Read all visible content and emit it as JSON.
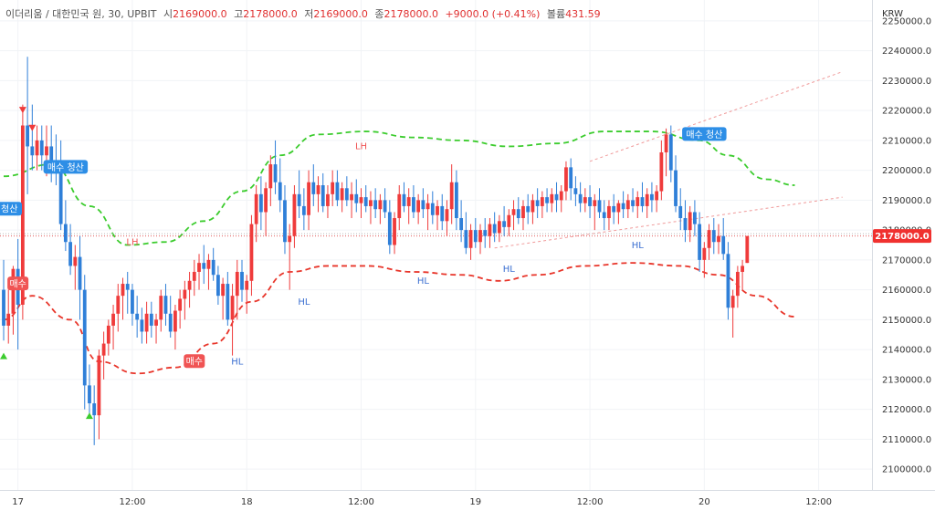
{
  "header": {
    "symbol": "이더리움 / 대한민국 원, 30, UPBIT",
    "open_label": "시",
    "open": "2169000.0",
    "high_label": "고",
    "high": "2178000.0",
    "low_label": "저",
    "low": "2169000.0",
    "close_label": "종",
    "close": "2178000.0",
    "change": "+9000.0 (+0.41%)",
    "volume_label": "볼륨",
    "volume": "431.59"
  },
  "axis": {
    "currency": "KRW",
    "current_price_label": "2178000.0"
  },
  "colors": {
    "up": "#ef3b3b",
    "down": "#2f7fd8",
    "upper_band": "#3ccc2e",
    "lower_band": "#e8352a",
    "trend_line": "#f09a9a",
    "buy_label": "#f05454",
    "close_label": "#2d8ee6",
    "hl_text": "#3b6fd1",
    "lh_text": "#f05454",
    "price_tag": "#f0312f"
  },
  "chart_data": {
    "type": "candlestick",
    "title": "",
    "ylabel": "KRW",
    "y_range": [
      2093000,
      2257000
    ],
    "y_ticks": [
      2100000,
      2110000,
      2120000,
      2130000,
      2140000,
      2150000,
      2160000,
      2170000,
      2180000,
      2190000,
      2200000,
      2210000,
      2220000,
      2230000,
      2240000,
      2250000
    ],
    "y_tick_labels": [
      "2100000.0",
      "2110000.0",
      "2120000.0",
      "2130000.0",
      "2140000.0",
      "2150000.0",
      "2160000.0",
      "2170000.0",
      "2180000.0",
      "2190000.0",
      "2200000.0",
      "2210000.0",
      "2220000.0",
      "2230000.0",
      "2240000.0",
      "2250000.0"
    ],
    "x_ticks": [
      {
        "bar": 3,
        "label": "17"
      },
      {
        "bar": 27,
        "label": "12:00"
      },
      {
        "bar": 51,
        "label": "18"
      },
      {
        "bar": 75,
        "label": "12:00"
      },
      {
        "bar": 99,
        "label": "19"
      },
      {
        "bar": 123,
        "label": "12:00"
      },
      {
        "bar": 147,
        "label": "20"
      },
      {
        "bar": 171,
        "label": "12:00"
      }
    ],
    "grid": true,
    "candles": [
      [
        2160000,
        2170000,
        2143000,
        2148000
      ],
      [
        2148000,
        2160000,
        2142000,
        2152000
      ],
      [
        2152000,
        2168000,
        2145000,
        2167000
      ],
      [
        2167000,
        2177000,
        2140000,
        2155000
      ],
      [
        2155000,
        2222000,
        2150000,
        2215000
      ],
      [
        2215000,
        2238000,
        2192000,
        2208000
      ],
      [
        2208000,
        2222000,
        2200000,
        2205000
      ],
      [
        2205000,
        2215000,
        2200000,
        2210000
      ],
      [
        2210000,
        2215000,
        2200000,
        2205000
      ],
      [
        2205000,
        2215000,
        2198000,
        2208000
      ],
      [
        2208000,
        2215000,
        2196000,
        2202000
      ],
      [
        2202000,
        2212000,
        2195000,
        2200000
      ],
      [
        2200000,
        2210000,
        2180000,
        2182000
      ],
      [
        2182000,
        2190000,
        2173000,
        2176000
      ],
      [
        2176000,
        2182000,
        2165000,
        2168000
      ],
      [
        2168000,
        2175000,
        2160000,
        2171000
      ],
      [
        2171000,
        2178000,
        2150000,
        2160000
      ],
      [
        2160000,
        2165000,
        2120000,
        2128000
      ],
      [
        2128000,
        2135000,
        2118000,
        2122000
      ],
      [
        2122000,
        2128000,
        2108000,
        2118000
      ],
      [
        2118000,
        2140000,
        2110000,
        2138000
      ],
      [
        2138000,
        2146000,
        2130000,
        2142000
      ],
      [
        2142000,
        2150000,
        2138000,
        2148000
      ],
      [
        2148000,
        2155000,
        2140000,
        2152000
      ],
      [
        2152000,
        2162000,
        2146000,
        2158000
      ],
      [
        2158000,
        2164000,
        2150000,
        2162000
      ],
      [
        2162000,
        2166000,
        2152000,
        2160000
      ],
      [
        2160000,
        2162000,
        2148000,
        2152000
      ],
      [
        2152000,
        2158000,
        2144000,
        2150000
      ],
      [
        2150000,
        2154000,
        2142000,
        2146000
      ],
      [
        2146000,
        2156000,
        2142000,
        2152000
      ],
      [
        2152000,
        2156000,
        2144000,
        2148000
      ],
      [
        2148000,
        2152000,
        2142000,
        2150000
      ],
      [
        2150000,
        2160000,
        2146000,
        2158000
      ],
      [
        2158000,
        2162000,
        2148000,
        2152000
      ],
      [
        2152000,
        2158000,
        2144000,
        2146000
      ],
      [
        2146000,
        2155000,
        2140000,
        2153000
      ],
      [
        2153000,
        2160000,
        2147000,
        2157000
      ],
      [
        2157000,
        2163000,
        2150000,
        2160000
      ],
      [
        2160000,
        2166000,
        2154000,
        2163000
      ],
      [
        2163000,
        2170000,
        2158000,
        2166000
      ],
      [
        2166000,
        2172000,
        2160000,
        2169000
      ],
      [
        2169000,
        2175000,
        2162000,
        2167000
      ],
      [
        2167000,
        2172000,
        2160000,
        2170000
      ],
      [
        2170000,
        2174000,
        2163000,
        2165000
      ],
      [
        2165000,
        2168000,
        2155000,
        2158000
      ],
      [
        2158000,
        2164000,
        2150000,
        2162000
      ],
      [
        2162000,
        2166000,
        2148000,
        2150000
      ],
      [
        2150000,
        2162000,
        2138000,
        2158000
      ],
      [
        2158000,
        2170000,
        2150000,
        2166000
      ],
      [
        2166000,
        2170000,
        2156000,
        2160000
      ],
      [
        2160000,
        2165000,
        2152000,
        2163000
      ],
      [
        2163000,
        2185000,
        2158000,
        2182000
      ],
      [
        2182000,
        2195000,
        2176000,
        2192000
      ],
      [
        2192000,
        2198000,
        2180000,
        2186000
      ],
      [
        2186000,
        2196000,
        2178000,
        2194000
      ],
      [
        2194000,
        2205000,
        2188000,
        2202000
      ],
      [
        2202000,
        2210000,
        2192000,
        2196000
      ],
      [
        2196000,
        2204000,
        2186000,
        2190000
      ],
      [
        2190000,
        2195000,
        2172000,
        2176000
      ],
      [
        2176000,
        2182000,
        2160000,
        2178000
      ],
      [
        2178000,
        2195000,
        2174000,
        2192000
      ],
      [
        2192000,
        2200000,
        2184000,
        2188000
      ],
      [
        2188000,
        2194000,
        2180000,
        2185000
      ],
      [
        2185000,
        2200000,
        2180000,
        2196000
      ],
      [
        2196000,
        2202000,
        2188000,
        2192000
      ],
      [
        2192000,
        2198000,
        2186000,
        2195000
      ],
      [
        2195000,
        2199000,
        2186000,
        2188000
      ],
      [
        2188000,
        2195000,
        2184000,
        2192000
      ],
      [
        2192000,
        2200000,
        2188000,
        2196000
      ],
      [
        2196000,
        2200000,
        2188000,
        2190000
      ],
      [
        2190000,
        2196000,
        2186000,
        2194000
      ],
      [
        2194000,
        2198000,
        2188000,
        2190000
      ],
      [
        2190000,
        2196000,
        2184000,
        2192000
      ],
      [
        2192000,
        2197000,
        2186000,
        2189000
      ],
      [
        2189000,
        2194000,
        2184000,
        2191000
      ],
      [
        2191000,
        2195000,
        2186000,
        2188000
      ],
      [
        2188000,
        2193000,
        2182000,
        2190000
      ],
      [
        2190000,
        2194000,
        2184000,
        2187000
      ],
      [
        2187000,
        2192000,
        2182000,
        2190000
      ],
      [
        2190000,
        2194000,
        2184000,
        2186000
      ],
      [
        2186000,
        2190000,
        2172000,
        2175000
      ],
      [
        2175000,
        2186000,
        2172000,
        2184000
      ],
      [
        2184000,
        2195000,
        2180000,
        2192000
      ],
      [
        2192000,
        2196000,
        2186000,
        2188000
      ],
      [
        2188000,
        2194000,
        2182000,
        2191000
      ],
      [
        2191000,
        2195000,
        2184000,
        2186000
      ],
      [
        2186000,
        2192000,
        2182000,
        2190000
      ],
      [
        2190000,
        2194000,
        2184000,
        2187000
      ],
      [
        2187000,
        2192000,
        2180000,
        2189000
      ],
      [
        2189000,
        2193000,
        2182000,
        2185000
      ],
      [
        2185000,
        2190000,
        2180000,
        2188000
      ],
      [
        2188000,
        2192000,
        2180000,
        2183000
      ],
      [
        2183000,
        2190000,
        2178000,
        2187000
      ],
      [
        2187000,
        2202000,
        2182000,
        2196000
      ],
      [
        2196000,
        2200000,
        2180000,
        2184000
      ],
      [
        2184000,
        2190000,
        2176000,
        2180000
      ],
      [
        2180000,
        2186000,
        2172000,
        2174000
      ],
      [
        2174000,
        2182000,
        2170000,
        2180000
      ],
      [
        2180000,
        2184000,
        2174000,
        2176000
      ],
      [
        2176000,
        2182000,
        2172000,
        2180000
      ],
      [
        2180000,
        2184000,
        2174000,
        2178000
      ],
      [
        2178000,
        2184000,
        2174000,
        2182000
      ],
      [
        2182000,
        2186000,
        2176000,
        2179000
      ],
      [
        2179000,
        2185000,
        2176000,
        2183000
      ],
      [
        2183000,
        2188000,
        2178000,
        2181000
      ],
      [
        2181000,
        2187000,
        2178000,
        2185000
      ],
      [
        2185000,
        2190000,
        2180000,
        2187000
      ],
      [
        2187000,
        2191000,
        2182000,
        2184000
      ],
      [
        2184000,
        2190000,
        2180000,
        2188000
      ],
      [
        2188000,
        2192000,
        2182000,
        2186000
      ],
      [
        2186000,
        2192000,
        2182000,
        2190000
      ],
      [
        2190000,
        2194000,
        2184000,
        2188000
      ],
      [
        2188000,
        2193000,
        2184000,
        2191000
      ],
      [
        2191000,
        2194000,
        2186000,
        2189000
      ],
      [
        2189000,
        2194000,
        2186000,
        2192000
      ],
      [
        2192000,
        2196000,
        2186000,
        2190000
      ],
      [
        2190000,
        2195000,
        2186000,
        2193000
      ],
      [
        2193000,
        2203000,
        2190000,
        2201000
      ],
      [
        2201000,
        2204000,
        2190000,
        2194000
      ],
      [
        2194000,
        2198000,
        2188000,
        2192000
      ],
      [
        2192000,
        2196000,
        2186000,
        2189000
      ],
      [
        2189000,
        2194000,
        2186000,
        2191000
      ],
      [
        2191000,
        2195000,
        2184000,
        2188000
      ],
      [
        2188000,
        2192000,
        2180000,
        2190000
      ],
      [
        2190000,
        2194000,
        2184000,
        2186000
      ],
      [
        2186000,
        2190000,
        2180000,
        2184000
      ],
      [
        2184000,
        2190000,
        2180000,
        2188000
      ],
      [
        2188000,
        2192000,
        2182000,
        2186000
      ],
      [
        2186000,
        2190000,
        2182000,
        2189000
      ],
      [
        2189000,
        2193000,
        2184000,
        2187000
      ],
      [
        2187000,
        2192000,
        2184000,
        2190000
      ],
      [
        2190000,
        2194000,
        2186000,
        2188000
      ],
      [
        2188000,
        2193000,
        2184000,
        2191000
      ],
      [
        2191000,
        2196000,
        2186000,
        2188000
      ],
      [
        2188000,
        2194000,
        2184000,
        2192000
      ],
      [
        2192000,
        2196000,
        2186000,
        2190000
      ],
      [
        2190000,
        2195000,
        2186000,
        2193000
      ],
      [
        2193000,
        2210000,
        2190000,
        2206000
      ],
      [
        2206000,
        2214000,
        2198000,
        2212000
      ],
      [
        2212000,
        2215000,
        2196000,
        2200000
      ],
      [
        2200000,
        2205000,
        2186000,
        2188000
      ],
      [
        2188000,
        2194000,
        2180000,
        2184000
      ],
      [
        2184000,
        2190000,
        2176000,
        2180000
      ],
      [
        2180000,
        2188000,
        2176000,
        2186000
      ],
      [
        2186000,
        2190000,
        2178000,
        2182000
      ],
      [
        2182000,
        2186000,
        2166000,
        2170000
      ],
      [
        2170000,
        2176000,
        2164000,
        2174000
      ],
      [
        2174000,
        2182000,
        2170000,
        2180000
      ],
      [
        2180000,
        2184000,
        2172000,
        2176000
      ],
      [
        2176000,
        2182000,
        2172000,
        2178000
      ],
      [
        2178000,
        2184000,
        2170000,
        2172000
      ],
      [
        2172000,
        2176000,
        2150000,
        2154000
      ],
      [
        2154000,
        2160000,
        2144000,
        2158000
      ],
      [
        2158000,
        2168000,
        2154000,
        2166000
      ],
      [
        2166000,
        2170000,
        2160000,
        2168000
      ],
      [
        2169000,
        2178000,
        2169000,
        2178000
      ]
    ],
    "upper_band": [
      [
        0,
        2198000
      ],
      [
        10,
        2202000
      ],
      [
        18,
        2188000
      ],
      [
        26,
        2175000
      ],
      [
        34,
        2176000
      ],
      [
        42,
        2183000
      ],
      [
        50,
        2193000
      ],
      [
        58,
        2205000
      ],
      [
        66,
        2212000
      ],
      [
        76,
        2213000
      ],
      [
        86,
        2211000
      ],
      [
        96,
        2210000
      ],
      [
        106,
        2208000
      ],
      [
        116,
        2209000
      ],
      [
        126,
        2213000
      ],
      [
        136,
        2213000
      ],
      [
        146,
        2210000
      ],
      [
        152,
        2205000
      ],
      [
        160,
        2197000
      ],
      [
        166,
        2195000
      ]
    ],
    "lower_band": [
      [
        0,
        2150000
      ],
      [
        6,
        2158000
      ],
      [
        14,
        2150000
      ],
      [
        20,
        2136000
      ],
      [
        28,
        2132000
      ],
      [
        36,
        2134000
      ],
      [
        44,
        2142000
      ],
      [
        52,
        2156000
      ],
      [
        60,
        2166000
      ],
      [
        68,
        2168000
      ],
      [
        76,
        2168000
      ],
      [
        86,
        2166000
      ],
      [
        96,
        2165000
      ],
      [
        104,
        2163000
      ],
      [
        112,
        2165000
      ],
      [
        122,
        2168000
      ],
      [
        132,
        2169000
      ],
      [
        142,
        2168000
      ],
      [
        150,
        2165000
      ],
      [
        158,
        2158000
      ],
      [
        166,
        2151000
      ]
    ],
    "trend_lines": [
      {
        "from": [
          123,
          2203000
        ],
        "to": [
          176,
          2233000
        ]
      },
      {
        "from": [
          103,
          2174000
        ],
        "to": [
          176,
          2191000
        ]
      }
    ],
    "labels": [
      {
        "kind": "buy",
        "text": "매수",
        "bar": 3,
        "price": 2162000
      },
      {
        "kind": "buy",
        "text": "매수",
        "bar": 40,
        "price": 2136000
      },
      {
        "kind": "close",
        "text": "매수 청산",
        "bar": 13,
        "price": 2201000
      },
      {
        "kind": "close",
        "text": "매수 청산",
        "bar": 147,
        "price": 2212000
      },
      {
        "kind": "close",
        "text": "수 청산",
        "bar": 0,
        "price": 2187000
      },
      {
        "kind": "hl",
        "text": "HL",
        "bar": 63,
        "price": 2155000
      },
      {
        "kind": "hl",
        "text": "HL",
        "bar": 49,
        "price": 2135000
      },
      {
        "kind": "hl",
        "text": "HL",
        "bar": 88,
        "price": 2162000
      },
      {
        "kind": "hl",
        "text": "HL",
        "bar": 106,
        "price": 2166000
      },
      {
        "kind": "hl",
        "text": "HL",
        "bar": 133,
        "price": 2174000
      },
      {
        "kind": "lh",
        "text": "LH",
        "bar": 27,
        "price": 2175000
      },
      {
        "kind": "lh",
        "text": "LH",
        "bar": 75,
        "price": 2207000
      }
    ],
    "markers": [
      {
        "type": "down",
        "bar": 4,
        "price": 2220000
      },
      {
        "type": "down",
        "bar": 6,
        "price": 2214000
      },
      {
        "type": "up",
        "bar": 0,
        "price": 2138000
      },
      {
        "type": "up",
        "bar": 18,
        "price": 2118000
      }
    ],
    "current_price": 2178000
  }
}
